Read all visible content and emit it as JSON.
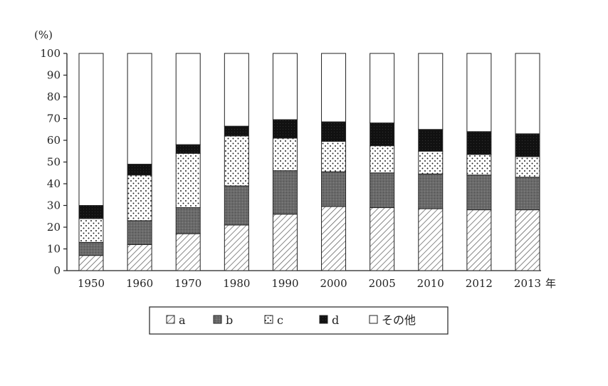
{
  "chart_data": {
    "type": "bar",
    "stacked": true,
    "ylabel": "(%)",
    "x_unit": "年",
    "ylim": [
      0,
      100
    ],
    "yticks": [
      0,
      10,
      20,
      30,
      40,
      50,
      60,
      70,
      80,
      90,
      100
    ],
    "categories": [
      "1950",
      "1960",
      "1970",
      "1980",
      "1990",
      "2000",
      "2005",
      "2010",
      "2012",
      "2013"
    ],
    "series": [
      {
        "name": "a",
        "pattern": "hatch",
        "values": [
          7,
          12,
          17,
          21,
          26,
          29.5,
          29,
          28.5,
          28,
          28
        ]
      },
      {
        "name": "b",
        "pattern": "dark-gray",
        "values": [
          6,
          11,
          12,
          18,
          20,
          16,
          16,
          16,
          16,
          15
        ]
      },
      {
        "name": "c",
        "pattern": "dots",
        "values": [
          11,
          21,
          25,
          23,
          15,
          14,
          12.5,
          10.5,
          9.5,
          9.5
        ]
      },
      {
        "name": "d",
        "pattern": "black",
        "values": [
          6,
          5,
          4,
          4.5,
          8.5,
          9,
          10.5,
          10,
          10.5,
          10.5
        ]
      },
      {
        "name": "その他",
        "pattern": "white",
        "values": [
          70,
          51,
          42,
          33.5,
          30.5,
          31.5,
          32,
          35,
          36,
          37
        ]
      }
    ],
    "legend_position": "bottom-center",
    "grid": false
  }
}
